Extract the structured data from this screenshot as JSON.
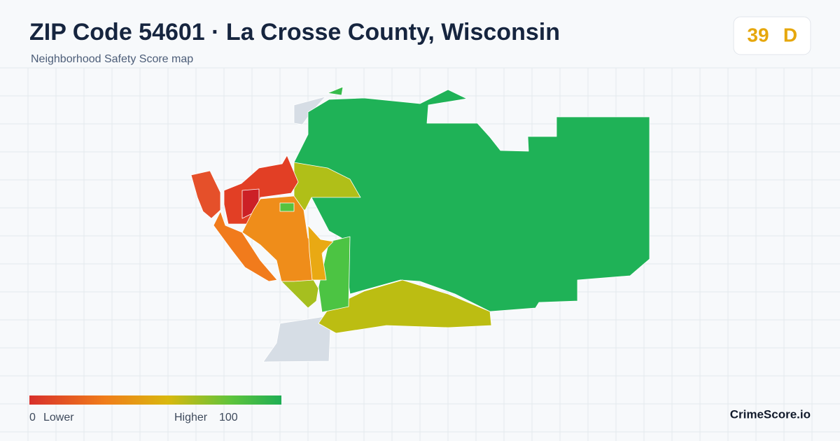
{
  "header": {
    "title": "ZIP Code 54601 · La Crosse County, Wisconsin",
    "subtitle": "Neighborhood Safety Score map"
  },
  "badge": {
    "score": 39,
    "grade": "D"
  },
  "legend": {
    "min": 0,
    "min_label": "Lower",
    "max_label": "Higher",
    "max": 100
  },
  "brand": "CrimeScore.io"
}
